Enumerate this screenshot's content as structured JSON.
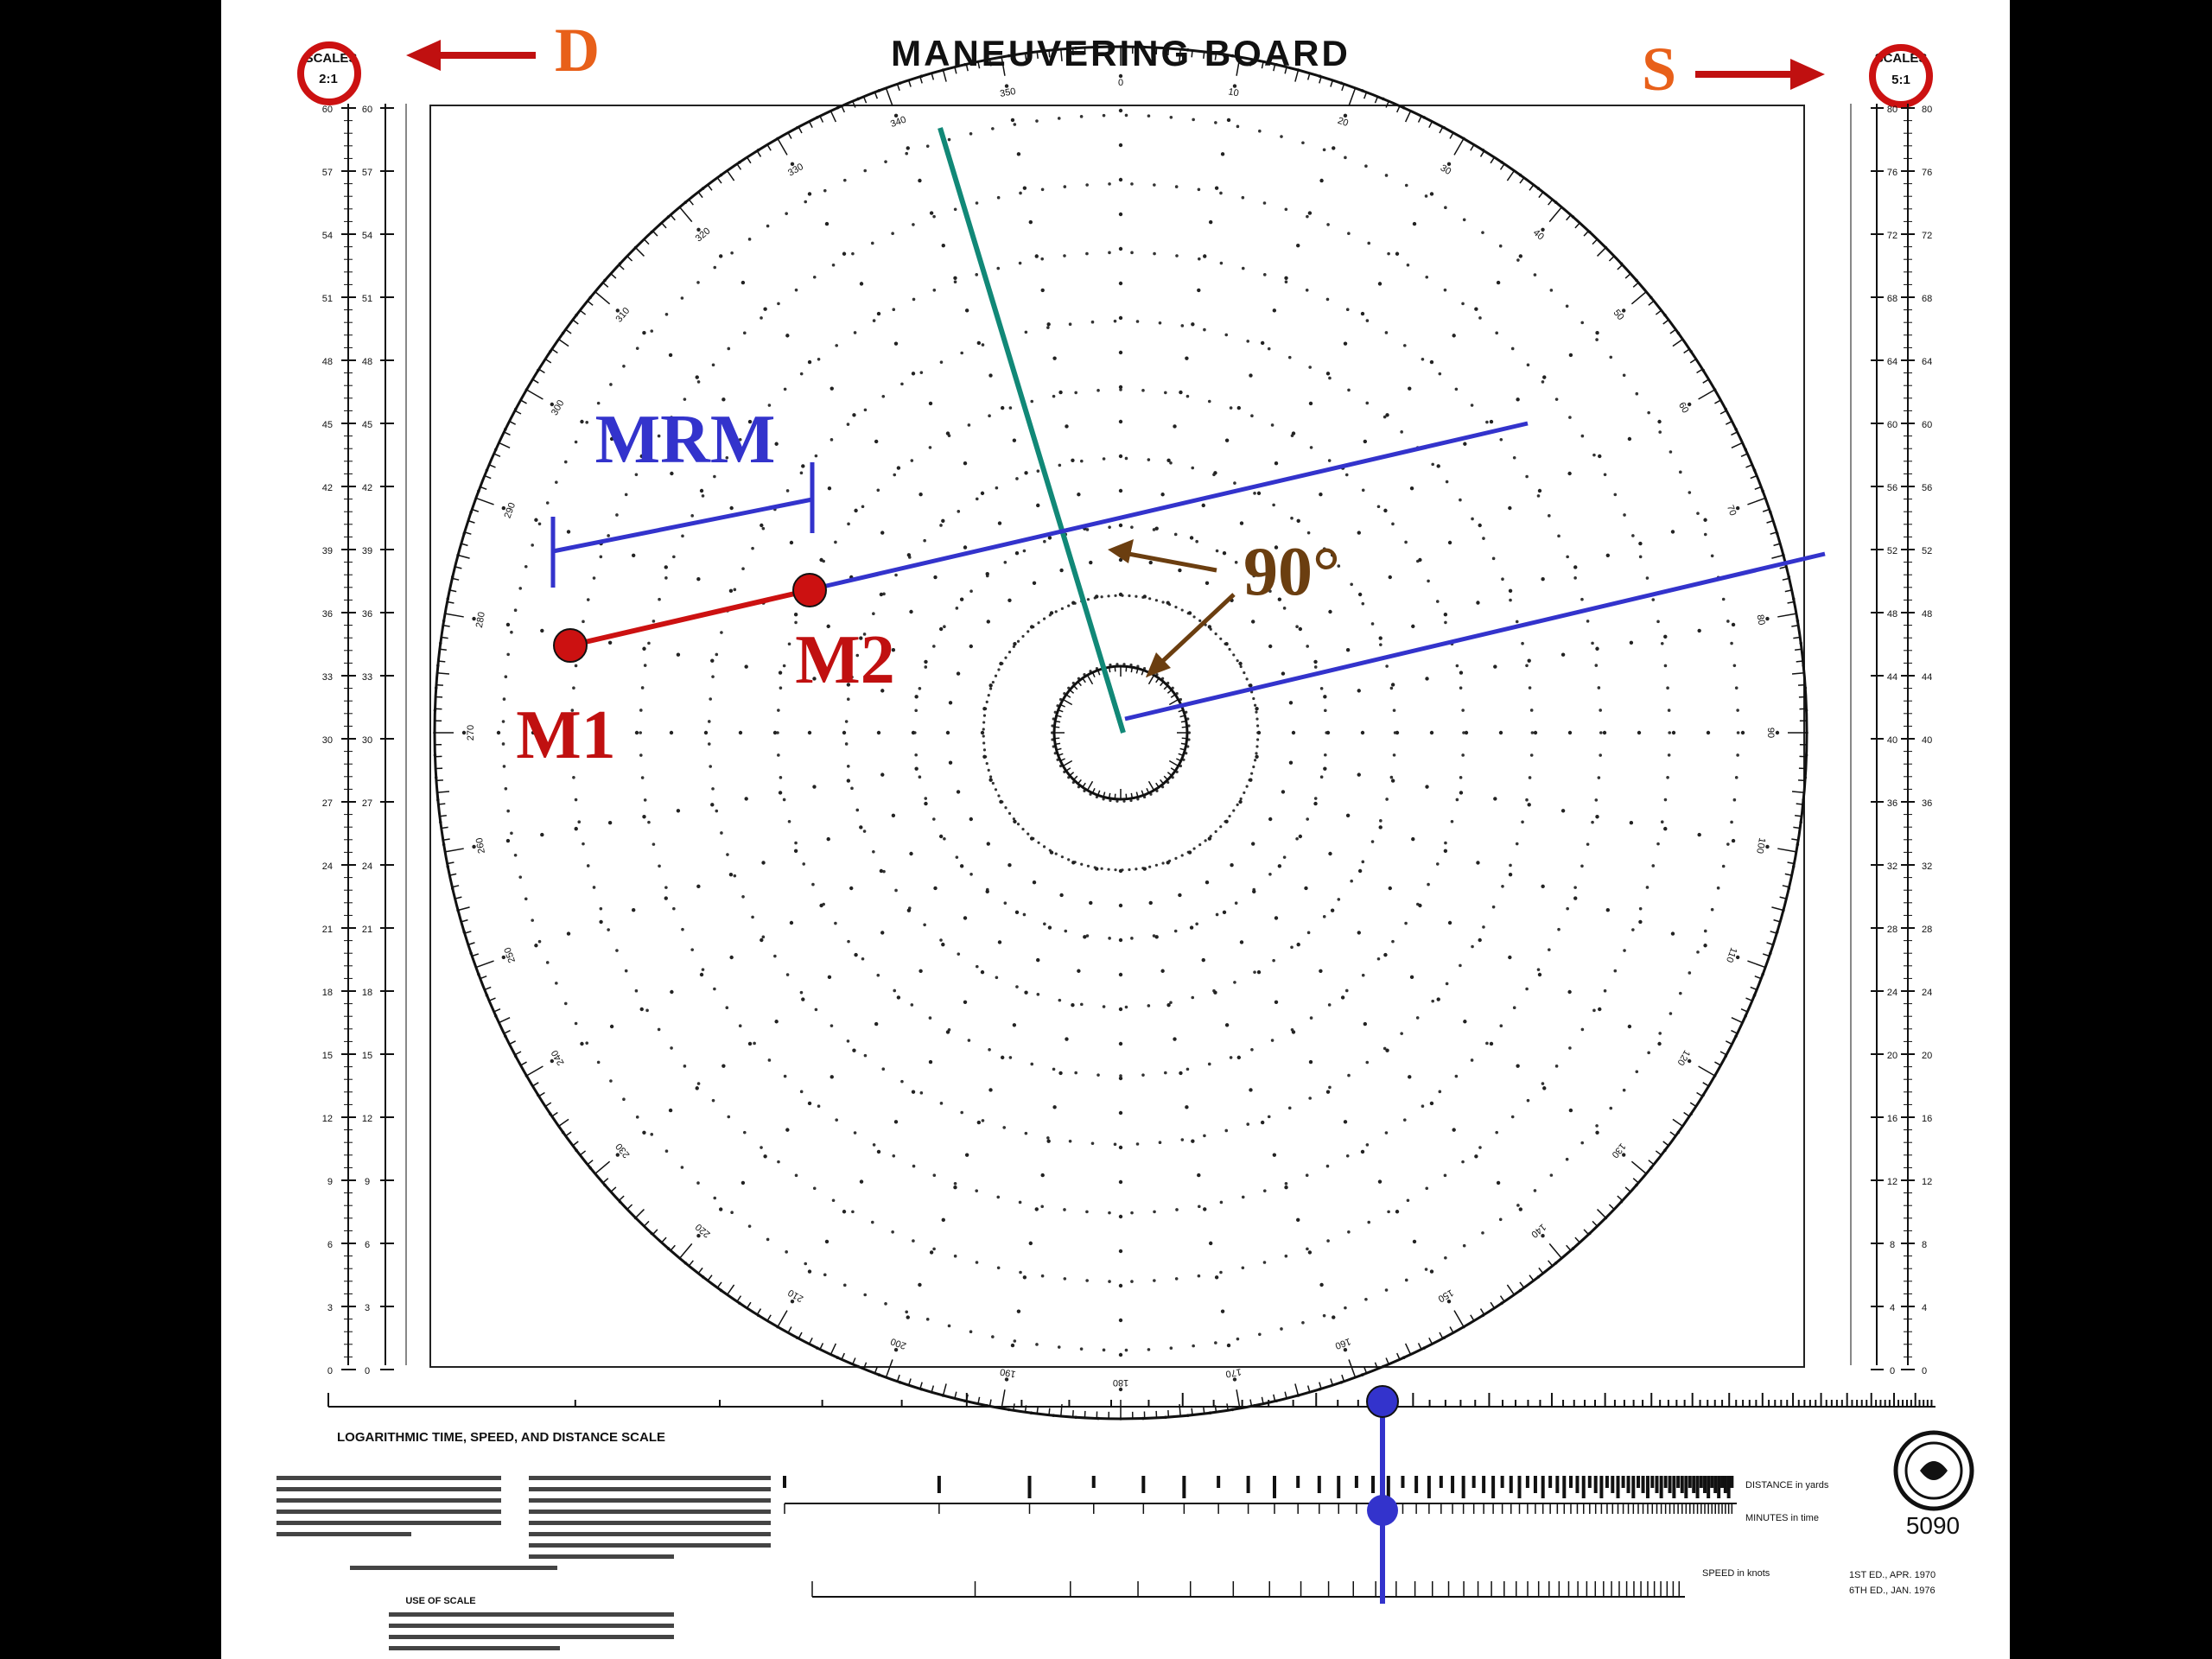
{
  "title": "MANEUVERING BOARD",
  "scales_left": {
    "label": "SCALES",
    "value": "2:1"
  },
  "scales_right": {
    "label": "SCALES",
    "value": "5:1"
  },
  "annotations": {
    "d": "D",
    "s": "S",
    "mrm": "MRM",
    "m1": "M1",
    "m2": "M2",
    "angle": "90°"
  },
  "compass_labels": [
    "0",
    "10",
    "20",
    "30",
    "40",
    "50",
    "60",
    "70",
    "80",
    "90",
    "100",
    "110",
    "120",
    "130",
    "140",
    "150",
    "160",
    "170",
    "180",
    "190",
    "200",
    "210",
    "220",
    "230",
    "240",
    "250",
    "260",
    "270",
    "280",
    "290",
    "300",
    "310",
    "320",
    "330",
    "340",
    "350"
  ],
  "left_scale": [
    "60",
    "57",
    "54",
    "51",
    "48",
    "45",
    "42",
    "39",
    "36",
    "33",
    "30",
    "27",
    "24",
    "21",
    "18",
    "15",
    "12",
    "9",
    "6",
    "3",
    "0"
  ],
  "right_scale": [
    "80",
    "76",
    "72",
    "68",
    "64",
    "60",
    "56",
    "52",
    "48",
    "44",
    "40",
    "36",
    "32",
    "28",
    "24",
    "20",
    "16",
    "12",
    "8",
    "4",
    "0"
  ],
  "bottom": {
    "nomogram_title": "LOGARITHMIC TIME, SPEED, AND DISTANCE SCALE",
    "use_of_scale": "USE OF SCALE",
    "distance_label": "DISTANCE in yards",
    "time_label": "MINUTES in time",
    "speed_label": "SPEED in knots",
    "board_number": "5090",
    "edition_1": "1ST ED., APR. 1970",
    "edition_2": "6TH ED., JAN. 1976"
  },
  "colors": {
    "red": "#cc1111",
    "blue": "#3333cc",
    "teal": "#118877",
    "brown": "#6b3e10",
    "orange": "#e8601a",
    "dark_red": "#c01010"
  }
}
